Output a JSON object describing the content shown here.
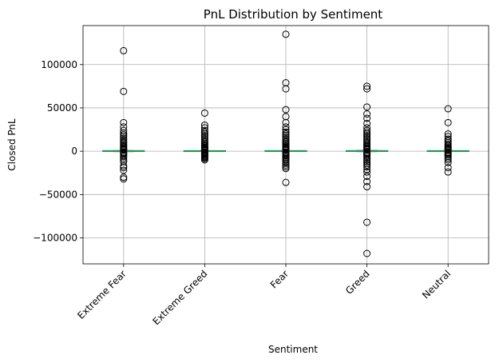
{
  "chart_data": {
    "type": "box",
    "title": "PnL Distribution by Sentiment",
    "xlabel": "Sentiment",
    "ylabel": "Closed PnL",
    "categories": [
      "Extreme Fear",
      "Extreme Greed",
      "Fear",
      "Greed",
      "Neutral"
    ],
    "ylim": [
      -130000,
      145000
    ],
    "yticks": [
      -100000,
      -50000,
      0,
      50000,
      100000
    ],
    "ytick_labels": [
      "−100000",
      "−50000",
      "0",
      "50000",
      "100000"
    ],
    "grid": true,
    "x_tick_rotation": 45,
    "colors": {
      "box": "#1f77b4",
      "median": "#2ca02c",
      "whisker": "#000000",
      "grid": "#b0b0b0",
      "outlier_edge": "#000000"
    },
    "boxes": [
      {
        "category": "Extreme Fear",
        "q1": -20,
        "median": 0,
        "q3": 200,
        "whisker_low": -500,
        "whisker_high": 700,
        "outliers": [
          116000,
          69000,
          33000,
          28000,
          24000,
          21000,
          19000,
          17000,
          15000,
          13000,
          11000,
          9500,
          8000,
          6500,
          5200,
          4000,
          3000,
          2200,
          1500,
          -1200,
          -2000,
          -3000,
          -4500,
          -6000,
          -8000,
          -10000,
          -12000,
          -17000,
          -19000,
          -22000,
          -30000,
          -32000
        ]
      },
      {
        "category": "Extreme Greed",
        "q1": -10,
        "median": 0,
        "q3": 150,
        "whisker_low": -300,
        "whisker_high": 500,
        "outliers": [
          44000,
          30000,
          27000,
          24000,
          22000,
          20000,
          18000,
          16000,
          14000,
          12000,
          10500,
          9000,
          7500,
          6200,
          5000,
          4000,
          3000,
          2200,
          1500,
          1000,
          -1000,
          -1800,
          -2600,
          -3500,
          -4500,
          -5500,
          -6500,
          -7500,
          -8500,
          -10000
        ]
      },
      {
        "category": "Fear",
        "q1": -15,
        "median": 0,
        "q3": 180,
        "whisker_low": -400,
        "whisker_high": 600,
        "outliers": [
          135000,
          79000,
          72000,
          48000,
          40000,
          33000,
          28000,
          25000,
          22000,
          20000,
          18000,
          16000,
          14000,
          12000,
          10500,
          9000,
          7500,
          6000,
          5000,
          4000,
          3000,
          2000,
          1300,
          -1200,
          -2000,
          -3000,
          -4200,
          -5500,
          -7000,
          -8500,
          -10000,
          -12000,
          -14000,
          -16000,
          -18000,
          -20000,
          -36000
        ]
      },
      {
        "category": "Greed",
        "q1": -20,
        "median": 0,
        "q3": 220,
        "whisker_low": -500,
        "whisker_high": 800,
        "outliers": [
          75000,
          72000,
          51000,
          43000,
          38000,
          32000,
          27000,
          24000,
          22000,
          20000,
          18000,
          16000,
          14000,
          12000,
          10000,
          8500,
          7000,
          5800,
          4600,
          3500,
          2500,
          1700,
          -1300,
          -2200,
          -3200,
          -4500,
          -6000,
          -8000,
          -10000,
          -12000,
          -14000,
          -16000,
          -18000,
          -21000,
          -24000,
          -29000,
          -35000,
          -41000,
          -82000,
          -118000
        ]
      },
      {
        "category": "Neutral",
        "q1": -10,
        "median": 0,
        "q3": 160,
        "whisker_low": -400,
        "whisker_high": 600,
        "outliers": [
          49000,
          33000,
          20000,
          17000,
          14000,
          12000,
          10000,
          8000,
          6500,
          5000,
          3800,
          2800,
          2000,
          1200,
          -1200,
          -2000,
          -3000,
          -4500,
          -6000,
          -8000,
          -10000,
          -13000,
          -19000,
          -24000
        ]
      }
    ]
  }
}
